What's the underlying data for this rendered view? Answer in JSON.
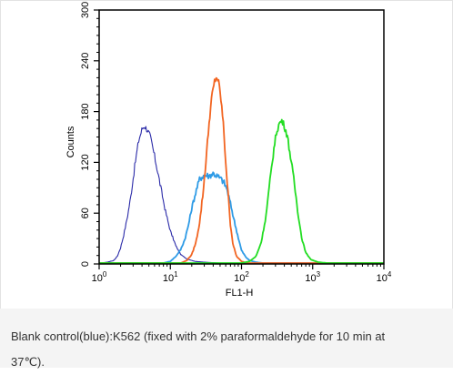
{
  "chart_data": {
    "type": "line",
    "title": "",
    "xlabel": "FL1-H",
    "ylabel": "Counts",
    "x_scale": "log",
    "xlim": [
      1,
      10000
    ],
    "ylim": [
      0,
      300
    ],
    "x_ticks": [
      {
        "value": 1,
        "base": "10",
        "exp": "0"
      },
      {
        "value": 10,
        "base": "10",
        "exp": "1"
      },
      {
        "value": 100,
        "base": "10",
        "exp": "2"
      },
      {
        "value": 1000,
        "base": "10",
        "exp": "3"
      },
      {
        "value": 10000,
        "base": "10",
        "exp": "4"
      }
    ],
    "y_ticks": [
      {
        "value": 0,
        "label": "0"
      },
      {
        "value": 60,
        "label": "60"
      },
      {
        "value": 120,
        "label": "120"
      },
      {
        "value": 180,
        "label": "180"
      },
      {
        "value": 240,
        "label": "240"
      },
      {
        "value": 300,
        "label": "300"
      }
    ],
    "grid": false,
    "legend": "none",
    "series": [
      {
        "color": "#2a2aa8",
        "points": [
          [
            1.0,
            0
          ],
          [
            1.3,
            1
          ],
          [
            1.6,
            3
          ],
          [
            1.8,
            8
          ],
          [
            2.0,
            18
          ],
          [
            2.2,
            32
          ],
          [
            2.5,
            55
          ],
          [
            2.8,
            80
          ],
          [
            3.0,
            100
          ],
          [
            3.3,
            125
          ],
          [
            3.6,
            145
          ],
          [
            4.0,
            158
          ],
          [
            4.3,
            162
          ],
          [
            4.7,
            158
          ],
          [
            5.2,
            150
          ],
          [
            5.8,
            132
          ],
          [
            6.5,
            112
          ],
          [
            7.5,
            85
          ],
          [
            8.5,
            62
          ],
          [
            10,
            38
          ],
          [
            12,
            20
          ],
          [
            14,
            10
          ],
          [
            17,
            5
          ],
          [
            22,
            2
          ],
          [
            30,
            1
          ],
          [
            50,
            0
          ],
          [
            10000,
            0
          ]
        ]
      },
      {
        "color": "#2e9be6",
        "points": [
          [
            1.0,
            0
          ],
          [
            8,
            0
          ],
          [
            10,
            2
          ],
          [
            12,
            8
          ],
          [
            14,
            16
          ],
          [
            16,
            28
          ],
          [
            18,
            45
          ],
          [
            20,
            65
          ],
          [
            23,
            85
          ],
          [
            26,
            100
          ],
          [
            30,
            104
          ],
          [
            35,
            103
          ],
          [
            40,
            106
          ],
          [
            45,
            103
          ],
          [
            50,
            100
          ],
          [
            56,
            96
          ],
          [
            62,
            88
          ],
          [
            70,
            70
          ],
          [
            80,
            48
          ],
          [
            90,
            30
          ],
          [
            100,
            15
          ],
          [
            115,
            7
          ],
          [
            130,
            3
          ],
          [
            160,
            1
          ],
          [
            200,
            0
          ],
          [
            10000,
            0
          ]
        ]
      },
      {
        "color": "#f26522",
        "points": [
          [
            1.0,
            0
          ],
          [
            14,
            0
          ],
          [
            17,
            3
          ],
          [
            20,
            10
          ],
          [
            23,
            25
          ],
          [
            26,
            50
          ],
          [
            29,
            85
          ],
          [
            32,
            125
          ],
          [
            35,
            165
          ],
          [
            38,
            195
          ],
          [
            42,
            215
          ],
          [
            45,
            220
          ],
          [
            48,
            212
          ],
          [
            52,
            190
          ],
          [
            56,
            160
          ],
          [
            60,
            120
          ],
          [
            65,
            80
          ],
          [
            70,
            45
          ],
          [
            76,
            22
          ],
          [
            85,
            8
          ],
          [
            100,
            2
          ],
          [
            120,
            0
          ],
          [
            10000,
            0
          ]
        ]
      },
      {
        "color": "#22dd22",
        "points": [
          [
            1.0,
            0
          ],
          [
            100,
            0
          ],
          [
            130,
            2
          ],
          [
            160,
            8
          ],
          [
            190,
            25
          ],
          [
            220,
            55
          ],
          [
            250,
            95
          ],
          [
            280,
            130
          ],
          [
            310,
            155
          ],
          [
            340,
            165
          ],
          [
            370,
            168
          ],
          [
            400,
            162
          ],
          [
            440,
            150
          ],
          [
            490,
            125
          ],
          [
            550,
            95
          ],
          [
            620,
            60
          ],
          [
            700,
            30
          ],
          [
            800,
            12
          ],
          [
            950,
            4
          ],
          [
            1200,
            1
          ],
          [
            1600,
            0
          ],
          [
            10000,
            0
          ]
        ]
      }
    ]
  },
  "caption": {
    "line1": "Blank control(blue):K562 (fixed with 2% paraformaldehyde for 10 min at",
    "line2": "37℃)."
  }
}
